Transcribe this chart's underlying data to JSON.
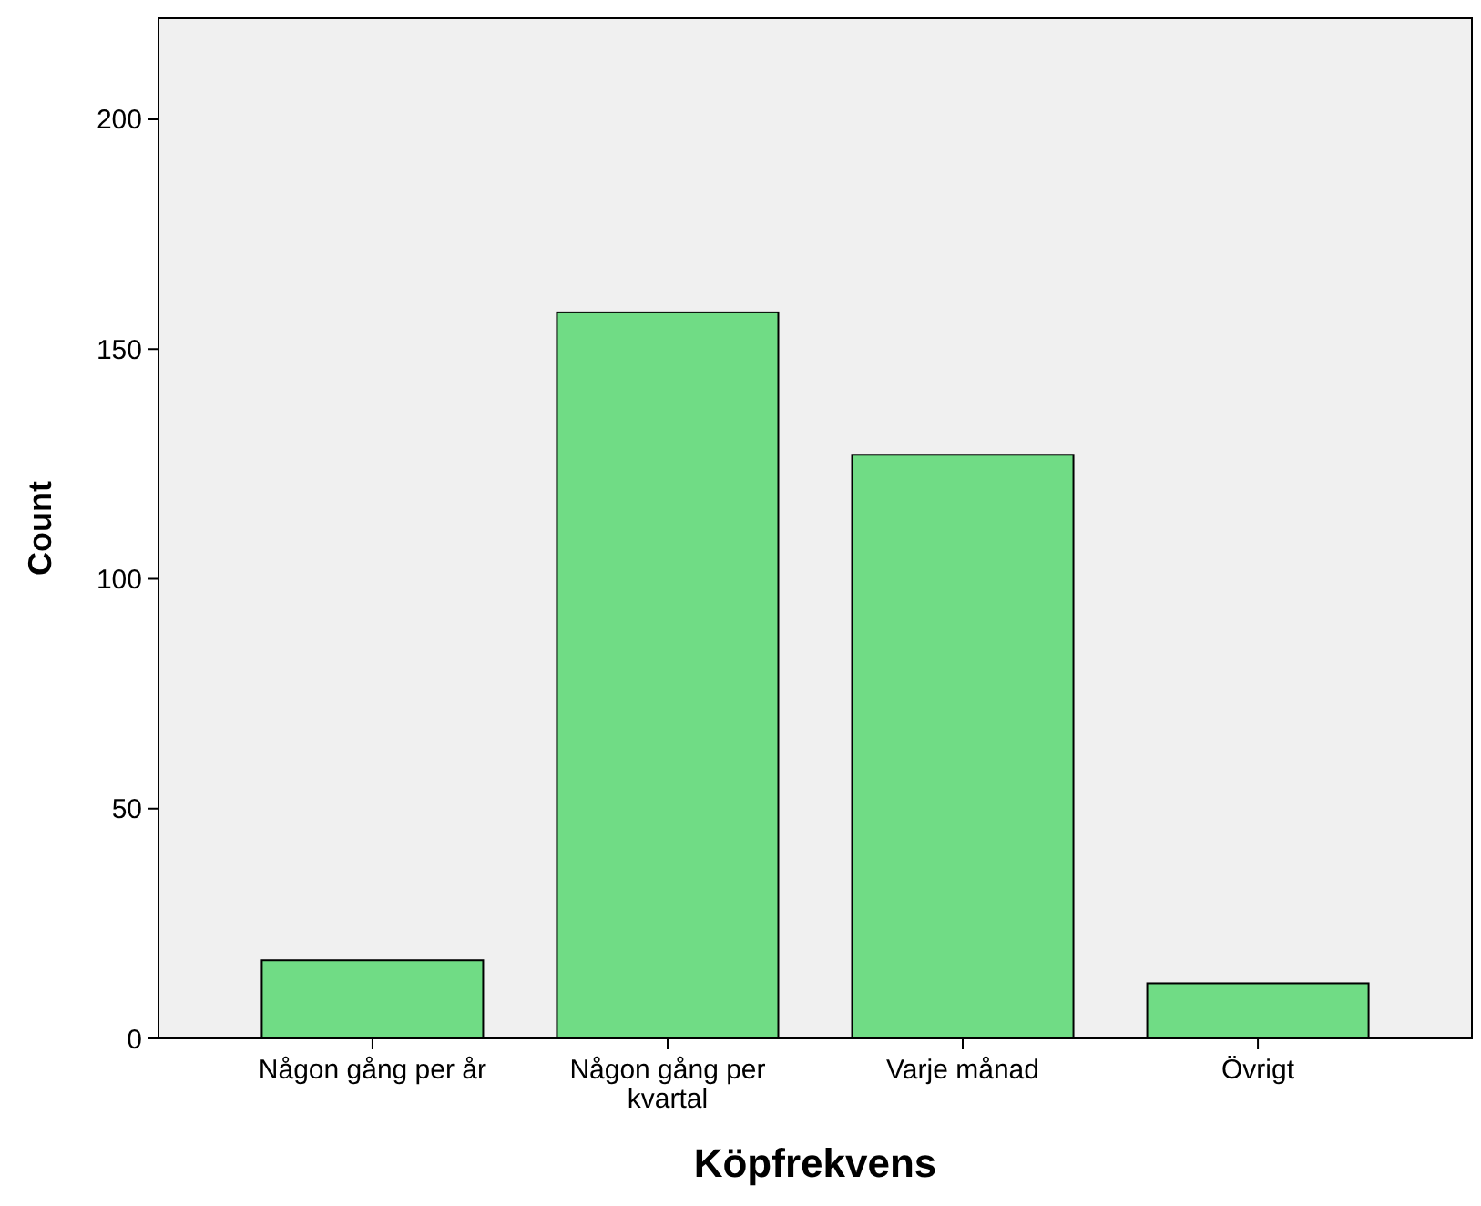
{
  "chart_data": {
    "type": "bar",
    "xlabel": "Köpfrekvens",
    "ylabel": "Count",
    "categories": [
      "Någon gång per år",
      "Någon gång per kvartal",
      "Varje månad",
      "Övrigt"
    ],
    "values": [
      17,
      158,
      127,
      12
    ],
    "color": "#70dc85",
    "ylim": [
      0,
      222
    ],
    "yticks": [
      0,
      50,
      100,
      150,
      200
    ],
    "grid": false
  }
}
